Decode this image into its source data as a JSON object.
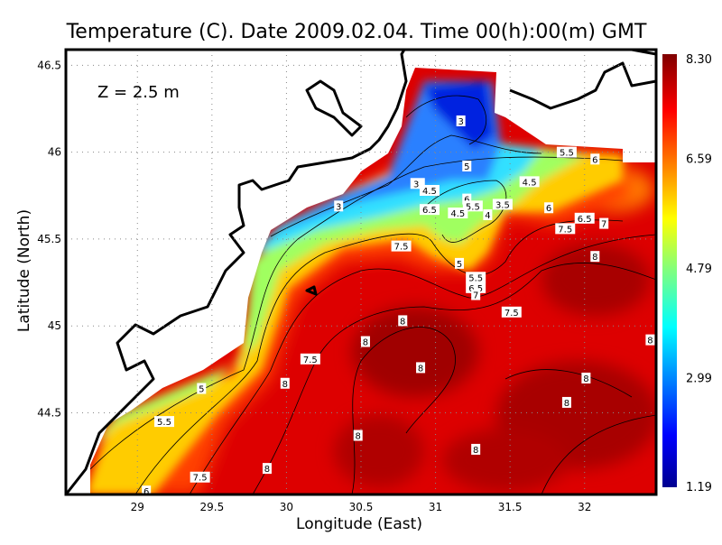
{
  "chart_data": {
    "type": "heatmap",
    "subtype": "filled contour map",
    "title": "Temperature (C). Date 2009.02.04. Time 00(h):00(m) GMT",
    "annotation": "Z = 2.5 m",
    "xlabel": "Longitude (East)",
    "ylabel": "Latitude (North)",
    "xlim": [
      28.52,
      32.48
    ],
    "ylim": [
      44.03,
      46.59
    ],
    "xticks": [
      "29",
      "29.5",
      "30",
      "30.5",
      "31",
      "31.5",
      "32"
    ],
    "yticks": [
      "44.5",
      "45",
      "45.5",
      "46",
      "46.5"
    ],
    "grid": true,
    "colormap": "jet",
    "colorbar": {
      "position": "right",
      "min": 1.19,
      "max": 8.3,
      "tick_labels": [
        "8.30",
        "6.59",
        "4.79",
        "2.99",
        "1.19"
      ]
    },
    "contour_interval": 0.5,
    "contour_labels": [
      {
        "text": "3",
        "lon": 31.17,
        "lat": 46.18
      },
      {
        "text": "5",
        "lon": 31.21,
        "lat": 45.92
      },
      {
        "text": "5.5",
        "lon": 31.88,
        "lat": 46.0
      },
      {
        "text": "6",
        "lon": 32.07,
        "lat": 45.96
      },
      {
        "text": "4.5",
        "lon": 31.63,
        "lat": 45.83
      },
      {
        "text": "3.",
        "lon": 30.88,
        "lat": 45.82
      },
      {
        "text": "4.5",
        "lon": 30.96,
        "lat": 45.78
      },
      {
        "text": "3",
        "lon": 30.35,
        "lat": 45.69
      },
      {
        "text": "6",
        "lon": 31.21,
        "lat": 45.73
      },
      {
        "text": "5.5",
        "lon": 31.25,
        "lat": 45.69
      },
      {
        "text": "3.5",
        "lon": 31.45,
        "lat": 45.7
      },
      {
        "text": "6.5",
        "lon": 30.96,
        "lat": 45.67
      },
      {
        "text": "4.5",
        "lon": 31.15,
        "lat": 45.65
      },
      {
        "text": "4",
        "lon": 31.35,
        "lat": 45.64
      },
      {
        "text": "6",
        "lon": 31.76,
        "lat": 45.68
      },
      {
        "text": "6.5",
        "lon": 32.0,
        "lat": 45.62
      },
      {
        "text": "7",
        "lon": 32.13,
        "lat": 45.59
      },
      {
        "text": "7.5",
        "lon": 31.87,
        "lat": 45.56
      },
      {
        "text": "7.5",
        "lon": 30.77,
        "lat": 45.46
      },
      {
        "text": "8",
        "lon": 32.07,
        "lat": 45.4
      },
      {
        "text": "5",
        "lon": 31.16,
        "lat": 45.36
      },
      {
        "text": "5.5",
        "lon": 31.27,
        "lat": 45.28
      },
      {
        "text": "6.5",
        "lon": 31.27,
        "lat": 45.22
      },
      {
        "text": "7",
        "lon": 31.27,
        "lat": 45.18
      },
      {
        "text": "7.5",
        "lon": 31.51,
        "lat": 45.08
      },
      {
        "text": "8",
        "lon": 30.78,
        "lat": 45.03
      },
      {
        "text": "8",
        "lon": 30.53,
        "lat": 44.91
      },
      {
        "text": "8",
        "lon": 32.44,
        "lat": 44.92
      },
      {
        "text": "7.5",
        "lon": 30.16,
        "lat": 44.81
      },
      {
        "text": "8",
        "lon": 30.9,
        "lat": 44.76
      },
      {
        "text": "8",
        "lon": 32.01,
        "lat": 44.7
      },
      {
        "text": "5",
        "lon": 29.43,
        "lat": 44.64
      },
      {
        "text": "8",
        "lon": 29.99,
        "lat": 44.67
      },
      {
        "text": "8",
        "lon": 31.88,
        "lat": 44.56
      },
      {
        "text": "5.5",
        "lon": 29.18,
        "lat": 44.45
      },
      {
        "text": "8",
        "lon": 30.48,
        "lat": 44.37
      },
      {
        "text": "8",
        "lon": 31.27,
        "lat": 44.29
      },
      {
        "text": "8",
        "lon": 29.87,
        "lat": 44.18
      },
      {
        "text": "7.5",
        "lon": 29.42,
        "lat": 44.13
      },
      {
        "text": "6",
        "lon": 29.06,
        "lat": 44.05
      }
    ]
  }
}
